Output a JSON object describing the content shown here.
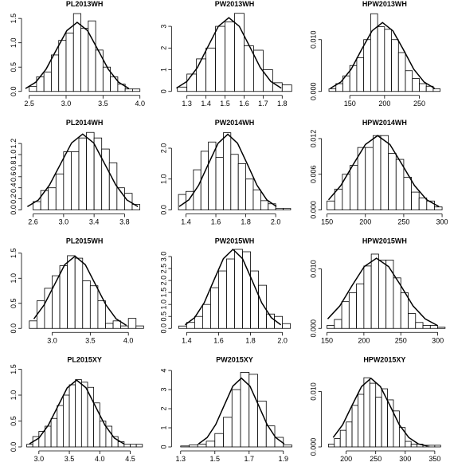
{
  "chart_data": [
    {
      "type": "histogram",
      "title": "PL2013WH",
      "bins": [
        2.5,
        2.6,
        2.7,
        2.8,
        2.9,
        3.0,
        3.1,
        3.2,
        3.3,
        3.4,
        3.5,
        3.6,
        3.7,
        3.8,
        3.9,
        4.0
      ],
      "values": [
        0.1,
        0.3,
        0.4,
        0.75,
        1.05,
        1.2,
        1.6,
        1.3,
        1.45,
        0.85,
        0.5,
        0.3,
        0.15,
        0.05,
        0.05
      ],
      "xlim": [
        2.45,
        4.05
      ],
      "ylim": [
        0,
        1.65
      ],
      "xticks": [
        2.5,
        {
          "value": 3,
          "label": "3.0"
        },
        3.5,
        {
          "value": 4,
          "label": "4.0"
        }
      ],
      "yticks": [
        {
          "value": 0,
          "label": "0.0"
        },
        0.5,
        {
          "value": 1,
          "label": "1.0"
        },
        1.5
      ],
      "curve": {
        "x": [
          2.45,
          2.59,
          2.73,
          2.87,
          3.01,
          3.15,
          3.29,
          3.43,
          3.57,
          3.71,
          3.85
        ],
        "y": [
          0.06,
          0.19,
          0.46,
          0.86,
          1.25,
          1.42,
          1.25,
          0.86,
          0.46,
          0.19,
          0.06
        ]
      }
    },
    {
      "type": "histogram",
      "title": "PW2013WH",
      "bins": [
        1.25,
        1.3,
        1.35,
        1.4,
        1.45,
        1.5,
        1.55,
        1.6,
        1.65,
        1.7,
        1.75,
        1.8,
        1.85
      ],
      "values": [
        0.2,
        0.8,
        1.5,
        2.0,
        3.0,
        3.2,
        3.6,
        2.1,
        1.9,
        1.0,
        0.4,
        0.3
      ],
      "xlim": [
        1.24,
        1.86
      ],
      "ylim": [
        0,
        3.7
      ],
      "xticks": [
        1.3,
        1.4,
        1.5,
        1.6,
        1.7,
        1.8
      ],
      "yticks": [
        0,
        1,
        2,
        3
      ],
      "curve": {
        "x": [
          1.245,
          1.3,
          1.355,
          1.41,
          1.465,
          1.52,
          1.575,
          1.63,
          1.685,
          1.74,
          1.795
        ],
        "y": [
          0.15,
          0.46,
          1.1,
          2.06,
          3.0,
          3.4,
          3.0,
          2.06,
          1.1,
          0.46,
          0.15
        ]
      }
    },
    {
      "type": "histogram",
      "title": "HPW2013WH",
      "bins": [
        120,
        130,
        140,
        150,
        160,
        170,
        180,
        190,
        200,
        210,
        220,
        230,
        240,
        250,
        260,
        270,
        280
      ],
      "values": [
        0.0005,
        0.0015,
        0.003,
        0.005,
        0.0065,
        0.01,
        0.015,
        0.0125,
        0.012,
        0.01,
        0.0075,
        0.004,
        0.0025,
        0.0015,
        0.001,
        0.0005
      ],
      "xlim": [
        115,
        285
      ],
      "ylim": [
        0,
        0.0155
      ],
      "xticks": [
        150,
        200,
        250
      ],
      "yticks": [
        {
          "value": 0,
          "label": "0.000"
        },
        {
          "value": 0.01,
          "label": "0.010"
        }
      ],
      "curve": {
        "x": [
          122,
          137,
          152,
          167,
          182,
          197,
          212,
          227,
          242,
          257,
          272
        ],
        "y": [
          0.00059,
          0.0018,
          0.0043,
          0.0081,
          0.0117,
          0.0133,
          0.0117,
          0.0081,
          0.0043,
          0.0018,
          0.00059
        ]
      }
    },
    {
      "type": "histogram",
      "title": "PL2014WH",
      "bins": [
        2.6,
        2.7,
        2.8,
        2.9,
        3.0,
        3.1,
        3.2,
        3.3,
        3.4,
        3.5,
        3.6,
        3.7,
        3.8,
        3.9,
        4.0
      ],
      "values": [
        0.15,
        0.35,
        0.4,
        0.65,
        1.05,
        1.05,
        1.3,
        1.4,
        1.3,
        1.1,
        0.85,
        0.4,
        0.3,
        0.1
      ],
      "xlim": [
        2.5,
        4.05
      ],
      "ylim": [
        0,
        1.45
      ],
      "xticks": [
        2.6,
        {
          "value": 3,
          "label": "3.0"
        },
        3.4,
        3.8
      ],
      "yticks": [
        {
          "value": 0,
          "label": "0.0"
        },
        0.2,
        0.4,
        0.6,
        0.8,
        {
          "value": 1,
          "label": "1.0"
        },
        1.2
      ],
      "curve": {
        "x": [
          2.525,
          2.67,
          2.815,
          2.96,
          3.105,
          3.25,
          3.395,
          3.54,
          3.685,
          3.83,
          3.975
        ],
        "y": [
          0.06,
          0.18,
          0.45,
          0.83,
          1.21,
          1.37,
          1.21,
          0.83,
          0.45,
          0.18,
          0.06
        ]
      }
    },
    {
      "type": "histogram",
      "title": "PW2014WH",
      "bins": [
        1.35,
        1.4,
        1.45,
        1.5,
        1.55,
        1.6,
        1.65,
        1.7,
        1.75,
        1.8,
        1.85,
        1.9,
        1.95,
        2.0,
        2.05,
        2.1
      ],
      "values": [
        0.5,
        0.6,
        1.3,
        1.9,
        2.2,
        1.7,
        2.5,
        1.8,
        1.5,
        1.0,
        0.65,
        0.3,
        0.2,
        0.05,
        0.05
      ],
      "xlim": [
        1.33,
        2.12
      ],
      "ylim": [
        0,
        2.6
      ],
      "xticks": [
        1.4,
        1.6,
        1.8,
        {
          "value": 2,
          "label": "2.0"
        }
      ],
      "yticks": [
        {
          "value": 0,
          "label": "0.0"
        },
        {
          "value": 1,
          "label": "1.0"
        },
        {
          "value": 2,
          "label": "2.0"
        }
      ],
      "curve": {
        "x": [
          1.355,
          1.42,
          1.485,
          1.55,
          1.615,
          1.68,
          1.745,
          1.81,
          1.875,
          1.94,
          2.005
        ],
        "y": [
          0.11,
          0.33,
          0.8,
          1.49,
          2.16,
          2.45,
          2.16,
          1.49,
          0.8,
          0.33,
          0.11
        ]
      }
    },
    {
      "type": "histogram",
      "title": "HPW2014WH",
      "bins": [
        150,
        160,
        170,
        180,
        190,
        200,
        210,
        220,
        230,
        240,
        250,
        260,
        270,
        280,
        290,
        300
      ],
      "values": [
        0.0015,
        0.0035,
        0.006,
        0.0075,
        0.0105,
        0.0105,
        0.0125,
        0.0125,
        0.0095,
        0.0085,
        0.0055,
        0.003,
        0.002,
        0.0015,
        0.0005
      ],
      "xlim": [
        148,
        302
      ],
      "ylim": [
        0,
        0.0135
      ],
      "xticks": [
        150,
        200,
        250,
        300
      ],
      "yticks": [
        {
          "value": 0,
          "label": "0.000"
        },
        {
          "value": 0.006,
          "label": "0.006"
        },
        {
          "value": 0.012,
          "label": "0.012"
        }
      ],
      "curve": {
        "x": [
          152,
          168,
          184,
          200,
          216,
          232,
          248,
          264,
          280,
          296
        ],
        "y": [
          0.0017,
          0.0041,
          0.0076,
          0.011,
          0.0125,
          0.011,
          0.0076,
          0.0041,
          0.0017,
          0.00055
        ]
      }
    },
    {
      "type": "histogram",
      "title": "PL2015WH",
      "bins": [
        2.7,
        2.8,
        2.9,
        3.0,
        3.1,
        3.2,
        3.3,
        3.4,
        3.5,
        3.6,
        3.7,
        3.8,
        3.9,
        4.0,
        4.1,
        4.2
      ],
      "values": [
        0.15,
        0.55,
        0.8,
        1.05,
        1.25,
        1.45,
        1.4,
        0.95,
        0.85,
        0.55,
        0.1,
        0.15,
        0.05,
        0.2,
        0.05
      ],
      "xlim": [
        2.65,
        4.2
      ],
      "ylim": [
        0,
        1.6
      ],
      "xticks": [
        {
          "value": 3,
          "label": "3.0"
        },
        3.5,
        {
          "value": 4,
          "label": "4.0"
        }
      ],
      "yticks": [
        {
          "value": 0,
          "label": "0.0"
        },
        0.5,
        {
          "value": 1,
          "label": "1.0"
        },
        1.5
      ],
      "curve": {
        "x": [
          2.76,
          2.895,
          3.03,
          3.165,
          3.3,
          3.435,
          3.57,
          3.705,
          3.84,
          3.975
        ],
        "y": [
          0.19,
          0.47,
          0.87,
          1.27,
          1.44,
          1.27,
          0.87,
          0.47,
          0.19,
          0.06
        ]
      }
    },
    {
      "type": "histogram",
      "title": "PW2015WH",
      "bins": [
        1.35,
        1.4,
        1.45,
        1.5,
        1.55,
        1.6,
        1.65,
        1.7,
        1.75,
        1.8,
        1.85,
        1.9,
        1.95,
        2.0,
        2.05
      ],
      "values": [
        0.1,
        0.25,
        0.5,
        1.0,
        1.7,
        2.4,
        2.9,
        3.3,
        3.2,
        2.4,
        1.8,
        0.6,
        0.5,
        0.2
      ],
      "xlim": [
        1.33,
        2.07
      ],
      "ylim": [
        0,
        3.35
      ],
      "xticks": [
        1.4,
        1.6,
        1.8,
        {
          "value": 2,
          "label": "2.0"
        }
      ],
      "yticks": [
        {
          "value": 0,
          "label": "0.0"
        },
        0.5,
        {
          "value": 1,
          "label": "1.0"
        },
        1.5,
        {
          "value": 2,
          "label": "2.0"
        },
        2.5,
        {
          "value": 3,
          "label": "3.0"
        }
      ],
      "curve": {
        "x": [
          1.39,
          1.45,
          1.51,
          1.57,
          1.63,
          1.69,
          1.75,
          1.81,
          1.87,
          1.93,
          1.99
        ],
        "y": [
          0.15,
          0.45,
          1.07,
          2.0,
          2.91,
          3.3,
          2.91,
          2.0,
          1.07,
          0.45,
          0.15
        ]
      }
    },
    {
      "type": "histogram",
      "title": "HPW2015WH",
      "bins": [
        150,
        160,
        170,
        180,
        190,
        200,
        210,
        220,
        230,
        240,
        250,
        260,
        270,
        280,
        290,
        300,
        310
      ],
      "values": [
        0.0005,
        0.0015,
        0.0045,
        0.006,
        0.0075,
        0.0105,
        0.0125,
        0.0115,
        0.0115,
        0.0085,
        0.006,
        0.0025,
        0.001,
        0.0005,
        0.0005,
        0.0002
      ],
      "xlim": [
        148,
        308
      ],
      "ylim": [
        0,
        0.0135
      ],
      "xticks": [
        150,
        200,
        250,
        300
      ],
      "yticks": [
        {
          "value": 0,
          "label": "0.000"
        },
        {
          "value": 0.01,
          "label": "0.010"
        }
      ],
      "curve": {
        "x": [
          151,
          167.5,
          184,
          200.5,
          217,
          233.5,
          250,
          266.5,
          283,
          299.5
        ],
        "y": [
          0.0016,
          0.0038,
          0.0072,
          0.0104,
          0.0118,
          0.0104,
          0.0072,
          0.0038,
          0.0016,
          0.0005
        ]
      }
    },
    {
      "type": "histogram",
      "title": "PL2015XY",
      "bins": [
        2.8,
        2.9,
        3.0,
        3.1,
        3.2,
        3.3,
        3.4,
        3.5,
        3.6,
        3.7,
        3.8,
        3.9,
        4.0,
        4.1,
        4.2,
        4.3,
        4.4,
        4.5,
        4.6,
        4.7
      ],
      "values": [
        0.05,
        0.2,
        0.3,
        0.4,
        0.55,
        0.8,
        1.0,
        1.2,
        1.3,
        1.25,
        1.15,
        0.85,
        0.5,
        0.4,
        0.2,
        0.1,
        0.05,
        0.05,
        0.05
      ],
      "xlim": [
        2.78,
        4.72
      ],
      "ylim": [
        0,
        1.55
      ],
      "xticks": [
        {
          "value": 3,
          "label": "3.0"
        },
        3.5,
        {
          "value": 4,
          "label": "4.0"
        },
        4.5
      ],
      "yticks": [
        {
          "value": 0,
          "label": "0.0"
        },
        0.5,
        {
          "value": 1,
          "label": "1.0"
        },
        1.5
      ],
      "curve": {
        "x": [
          2.845,
          3.0,
          3.155,
          3.31,
          3.465,
          3.62,
          3.775,
          3.93,
          4.085,
          4.24,
          4.395
        ],
        "y": [
          0.06,
          0.17,
          0.42,
          0.78,
          1.14,
          1.29,
          1.14,
          0.78,
          0.42,
          0.17,
          0.06
        ]
      }
    },
    {
      "type": "histogram",
      "title": "PW2015XY",
      "bins": [
        1.3,
        1.35,
        1.4,
        1.45,
        1.5,
        1.55,
        1.6,
        1.65,
        1.7,
        1.75,
        1.8,
        1.85,
        1.9,
        1.95
      ],
      "values": [
        0.05,
        0.1,
        0.15,
        0.3,
        0.7,
        1.55,
        3.0,
        3.9,
        3.8,
        2.4,
        1.1,
        0.5,
        0.1
      ],
      "xlim": [
        1.27,
        1.96
      ],
      "ylim": [
        0,
        4.2
      ],
      "xticks": [
        1.3,
        1.5,
        1.7,
        1.9
      ],
      "yticks": [
        0,
        1,
        2,
        3,
        4
      ],
      "curve": {
        "x": [
          1.405,
          1.455,
          1.505,
          1.555,
          1.605,
          1.655,
          1.705,
          1.755,
          1.805,
          1.855,
          1.905
        ],
        "y": [
          0.16,
          0.49,
          1.17,
          2.18,
          3.18,
          3.6,
          3.18,
          2.18,
          1.17,
          0.49,
          0.16
        ]
      }
    },
    {
      "type": "histogram",
      "title": "HPW2015XY",
      "bins": [
        170,
        180,
        190,
        200,
        210,
        220,
        230,
        240,
        250,
        260,
        270,
        280,
        290,
        300,
        310,
        320,
        330,
        340,
        350,
        360
      ],
      "values": [
        0.0005,
        0.0015,
        0.003,
        0.0045,
        0.0075,
        0.0095,
        0.0125,
        0.0115,
        0.009,
        0.0105,
        0.0085,
        0.0065,
        0.0035,
        0.001,
        0.0005,
        0.0005,
        0.0003,
        0.0003,
        0.0003
      ],
      "xlim": [
        165,
        365
      ],
      "ylim": [
        0,
        0.0145
      ],
      "xticks": [
        200,
        250,
        300,
        350
      ],
      "yticks": [
        {
          "value": 0,
          "label": "0.000"
        },
        {
          "value": 0.01,
          "label": "0.010"
        }
      ],
      "curve": {
        "x": [
          178,
          194,
          210,
          226,
          242,
          258,
          274,
          290,
          306,
          322,
          338
        ],
        "y": [
          0.0017,
          0.004,
          0.0075,
          0.0109,
          0.0124,
          0.0109,
          0.0075,
          0.004,
          0.0017,
          0.00055,
          0.00014
        ]
      }
    }
  ]
}
